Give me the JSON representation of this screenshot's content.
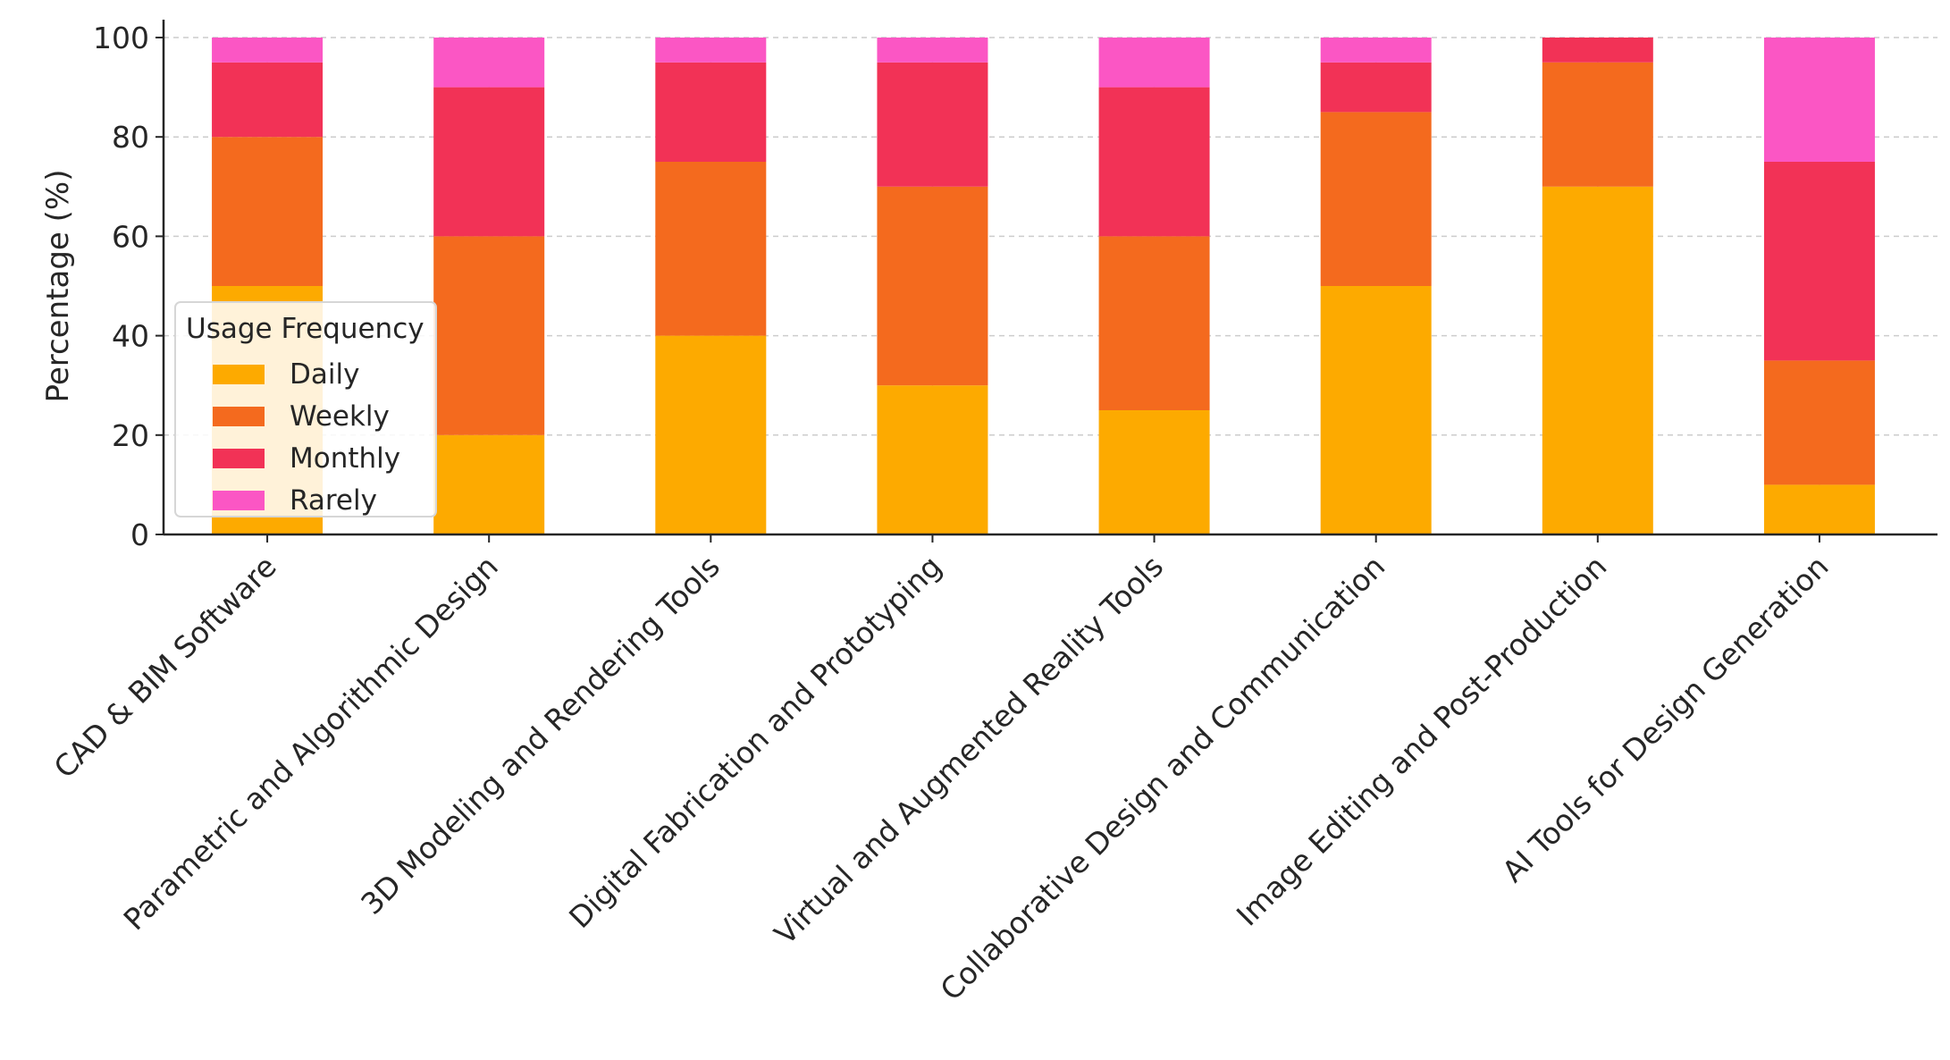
{
  "chart_data": {
    "type": "bar",
    "stacked": true,
    "title": "",
    "xlabel": "",
    "ylabel": "Percentage (%)",
    "ylim": [
      0,
      100
    ],
    "yticks": [
      "0",
      "20",
      "40",
      "60",
      "80",
      "100"
    ],
    "grid": true,
    "legend": {
      "title": "Usage Frequency",
      "position": "center-left"
    },
    "categories": [
      "CAD & BIM Software",
      "Parametric and Algorithmic Design",
      "3D Modeling and Rendering Tools",
      "Digital Fabrication and Prototyping",
      "Virtual and Augmented Reality Tools",
      "Collaborative Design and Communication",
      "Image Editing and Post-Production",
      "AI Tools for Design Generation"
    ],
    "series": [
      {
        "name": "Daily",
        "color": "#FDAA00",
        "values": [
          50,
          20,
          40,
          30,
          25,
          50,
          70,
          10
        ]
      },
      {
        "name": "Weekly",
        "color": "#F46A1E",
        "values": [
          30,
          40,
          35,
          40,
          35,
          35,
          25,
          25
        ]
      },
      {
        "name": "Monthly",
        "color": "#F23256",
        "values": [
          15,
          30,
          20,
          25,
          30,
          10,
          5,
          40
        ]
      },
      {
        "name": "Rarely",
        "color": "#FB56C4",
        "values": [
          5,
          10,
          5,
          5,
          10,
          5,
          0,
          25
        ]
      }
    ]
  }
}
